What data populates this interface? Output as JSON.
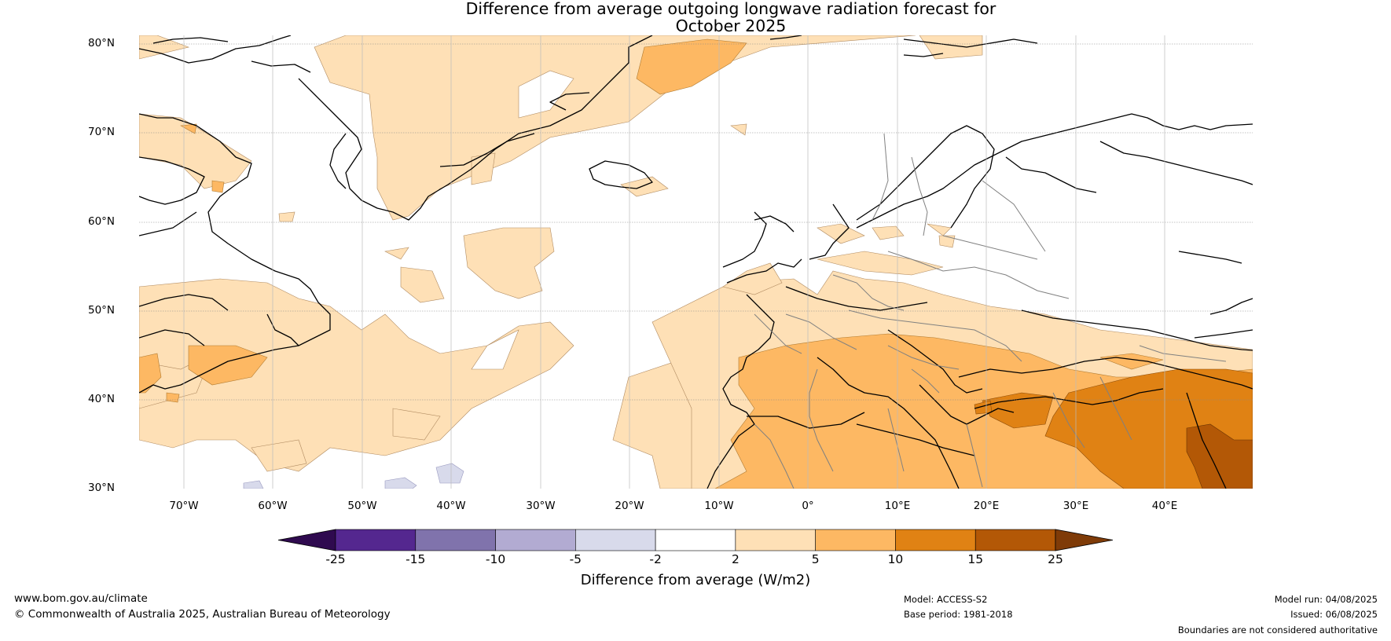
{
  "title_line1": "Difference from average outgoing longwave radiation forecast for",
  "title_line2": "October 2025",
  "lat_labels": [
    "80°N",
    "70°N",
    "60°N",
    "50°N",
    "40°N",
    "30°N"
  ],
  "lon_labels": [
    "70°W",
    "60°W",
    "50°W",
    "40°W",
    "30°W",
    "20°W",
    "10°W",
    "0°",
    "10°E",
    "20°E",
    "30°E",
    "40°E"
  ],
  "colorbar": {
    "ticks": [
      "-25",
      "-15",
      "-10",
      "-5",
      "-2",
      "2",
      "5",
      "10",
      "15",
      "25"
    ],
    "colors": [
      "#2f0a4f",
      "#54278f",
      "#8073ac",
      "#b2abd2",
      "#d8daeb",
      "#ffffff",
      "#fee0b6",
      "#fdb863",
      "#e08214",
      "#b35806",
      "#7f3b08"
    ],
    "label": "Difference from average (W/m2)"
  },
  "footer": {
    "website": "www.bom.gov.au/climate",
    "copyright": "© Commonwealth of Australia 2025, Australian Bureau of Meteorology",
    "model": "Model: ACCESS-S2",
    "base_period": "Base period: 1981-2018",
    "model_run": "Model run: 04/08/2025",
    "issued": "Issued: 06/08/2025",
    "disclaimer": "Boundaries are not considered authoritative"
  }
}
